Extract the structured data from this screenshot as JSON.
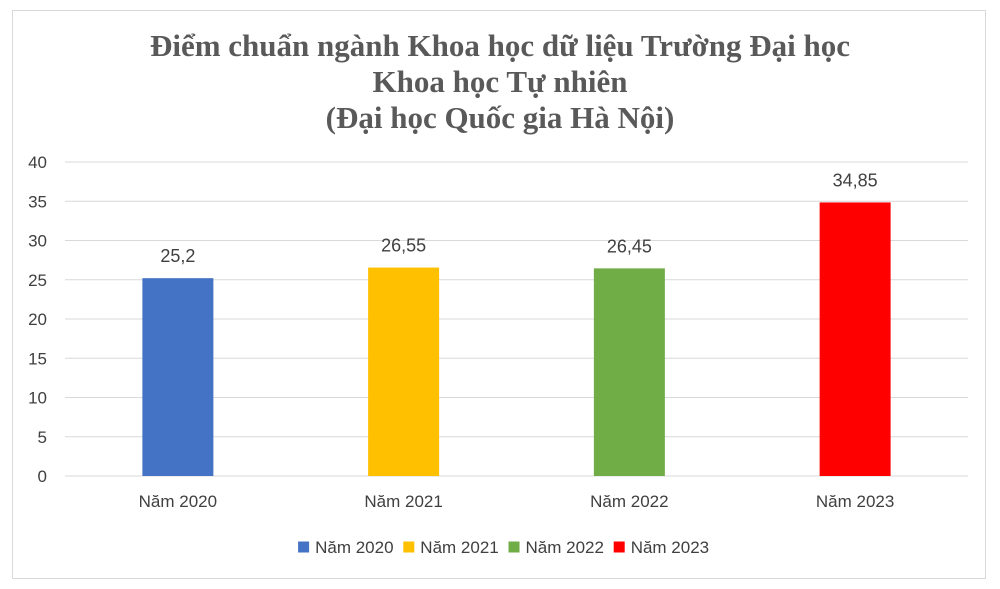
{
  "chart_data": {
    "type": "bar",
    "title_lines": [
      "Điểm chuẩn ngành Khoa học dữ liệu Trường Đại học",
      "Khoa học Tự nhiên",
      "(Đại học Quốc gia Hà Nội)"
    ],
    "categories": [
      "Năm 2020",
      "Năm 2021",
      "Năm 2022",
      "Năm 2023"
    ],
    "values": [
      25.2,
      26.55,
      26.45,
      34.85
    ],
    "data_labels": [
      "25,2",
      "26,55",
      "26,45",
      "34,85"
    ],
    "colors": [
      "#4472c4",
      "#ffc000",
      "#70ad47",
      "#ff0000"
    ],
    "ylim": [
      0,
      40
    ],
    "yticks": [
      0,
      5,
      10,
      15,
      20,
      25,
      30,
      35,
      40
    ],
    "grid": true,
    "legend": {
      "position": "bottom",
      "entries": [
        "Năm 2020",
        "Năm 2021",
        "Năm 2022",
        "Năm 2023"
      ]
    },
    "xlabel": "",
    "ylabel": ""
  }
}
